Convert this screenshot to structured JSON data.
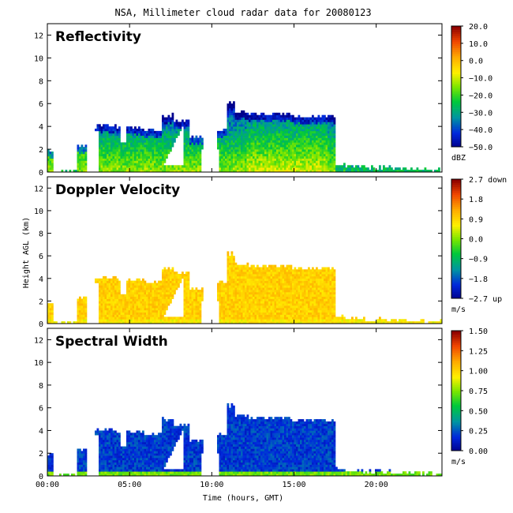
{
  "figure": {
    "title": "NSA, Millimeter cloud radar data for 20080123",
    "xlabel": "Time (hours, GMT)",
    "ylabel": "Height AGL (km)"
  },
  "chart_data": [
    {
      "type": "heatmap",
      "title": "Reflectivity",
      "x_range": [
        0,
        24
      ],
      "y_range": [
        0,
        13
      ],
      "x_ticks": [
        "00:00",
        "05:00",
        "10:00",
        "15:00",
        "20:00"
      ],
      "y_ticks": [
        "0",
        "2",
        "4",
        "6",
        "8",
        "10",
        "12"
      ],
      "colorbar": {
        "ticks": [
          "20.0",
          "10.0",
          "0.0",
          "−10.0",
          "−20.0",
          "−30.0",
          "−40.0",
          "−50.0"
        ],
        "unit": "dBZ",
        "min": -50,
        "max": 20
      },
      "palette": "rainbow"
    },
    {
      "type": "heatmap",
      "title": "Doppler Velocity",
      "x_range": [
        0,
        24
      ],
      "y_range": [
        0,
        13
      ],
      "x_ticks": [
        "00:00",
        "05:00",
        "10:00",
        "15:00",
        "20:00"
      ],
      "y_ticks": [
        "0",
        "2",
        "4",
        "6",
        "8",
        "10",
        "12"
      ],
      "colorbar": {
        "ticks": [
          "2.7 down",
          "1.8",
          "0.9",
          "0.0",
          "−0.9",
          "−1.8",
          "−2.7 up"
        ],
        "unit": "m/s",
        "min": -2.7,
        "max": 2.7
      },
      "palette": "rainbow"
    },
    {
      "type": "heatmap",
      "title": "Spectral Width",
      "x_range": [
        0,
        24
      ],
      "y_range": [
        0,
        13
      ],
      "x_ticks": [
        "00:00",
        "05:00",
        "10:00",
        "15:00",
        "20:00"
      ],
      "y_ticks": [
        "0",
        "2",
        "4",
        "6",
        "8",
        "10",
        "12"
      ],
      "colorbar": {
        "ticks": [
          "1.50",
          "1.25",
          "1.00",
          "0.75",
          "0.50",
          "0.25",
          "0.00"
        ],
        "unit": "m/s",
        "min": 0,
        "max": 1.5
      },
      "palette": "rainbow"
    }
  ]
}
